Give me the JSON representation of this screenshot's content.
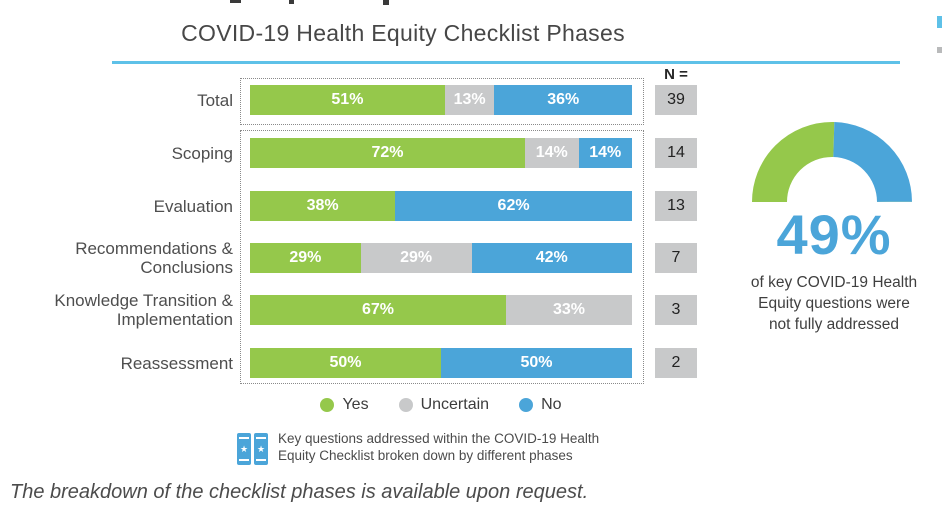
{
  "title": "COVID-19 Health Equity Checklist Phases",
  "colors": {
    "yes_green": "#95c84b",
    "uncertain_gray": "#c8c9ca",
    "no_blue": "#4ba5d9",
    "title_underline": "#5ec1e8",
    "n_box_gray": "#c8c9ca",
    "gauge_value_blue": "#4ba5d9",
    "badge_blue": "#4ba5d9"
  },
  "chart_data": {
    "type": "bar",
    "orientation": "horizontal-stacked",
    "title": "COVID-19 Health Equity Checklist Phases",
    "unit": "%",
    "xlim": [
      0,
      100
    ],
    "legend_position": "bottom",
    "categories": [
      "Total",
      "Scoping",
      "Evaluation",
      "Recommendations & Conclusions",
      "Knowledge Transition & Implementation",
      "Reassessment"
    ],
    "category_label_lines": [
      [
        "Total"
      ],
      [
        "Scoping"
      ],
      [
        "Evaluation"
      ],
      [
        "Recommendations &",
        "Conclusions"
      ],
      [
        "Knowledge Transition &",
        "Implementation"
      ],
      [
        "Reassessment"
      ]
    ],
    "series": [
      {
        "name": "Yes",
        "color": "#95c84b",
        "values": [
          51,
          72,
          38,
          29,
          67,
          50
        ]
      },
      {
        "name": "Uncertain",
        "color": "#c8c9ca",
        "values": [
          13,
          14,
          0,
          29,
          33,
          0
        ]
      },
      {
        "name": "No",
        "color": "#4ba5d9",
        "values": [
          36,
          14,
          62,
          42,
          0,
          50
        ]
      }
    ],
    "n_header": "N =",
    "n_values": [
      39,
      14,
      13,
      7,
      3,
      2
    ]
  },
  "legend": [
    {
      "label": "Yes",
      "color": "#95c84b"
    },
    {
      "label": "Uncertain",
      "color": "#c8c9ca"
    },
    {
      "label": "No",
      "color": "#4ba5d9"
    }
  ],
  "footnote": {
    "line1": "Key questions addressed within the COVID-19 Health",
    "line2": "Equity Checklist broken down by different phases"
  },
  "gauge": {
    "value_label": "49%",
    "green_pct": 51,
    "blue_pct": 49,
    "caption_lines": [
      "of key COVID-19 Health",
      "Equity questions were",
      "not fully addressed"
    ]
  },
  "bottom_note": "The breakdown of the checklist phases is available upon request."
}
